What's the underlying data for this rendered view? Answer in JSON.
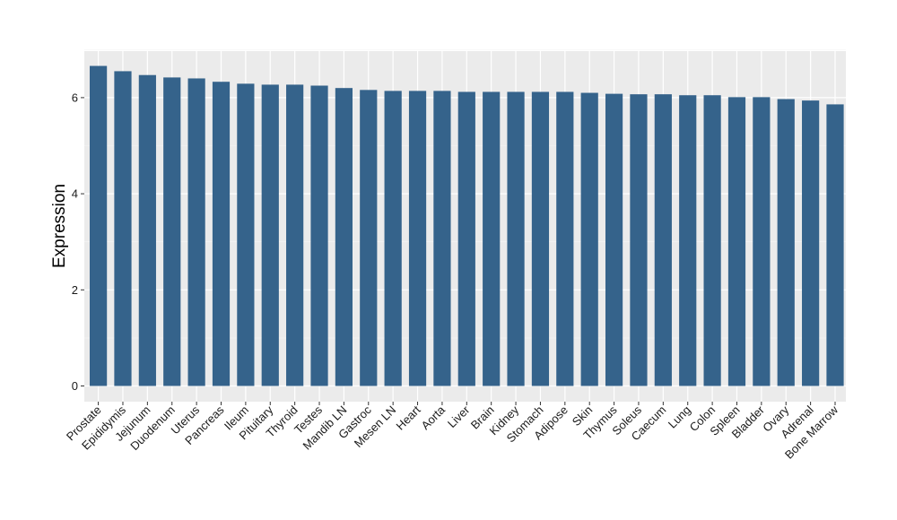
{
  "chart_data": {
    "type": "bar",
    "title": "",
    "xlabel": "",
    "ylabel": "Expression",
    "ylim": [
      0,
      7
    ],
    "yticks": [
      0,
      2,
      4,
      6
    ],
    "grid": true,
    "background": "#ebebeb",
    "bar_color": "#35638b",
    "categories": [
      "Prostate",
      "Epididymis",
      "Jejunum",
      "Duodenum",
      "Uterus",
      "Pancreas",
      "Ileum",
      "Pituitary",
      "Thyroid",
      "Testes",
      "Mandib LN",
      "Gastroc",
      "Mesen LN",
      "Heart",
      "Aorta",
      "Liver",
      "Brain",
      "Kidney",
      "Stomach",
      "Adipose",
      "Skin",
      "Thymus",
      "Soleus",
      "Caecum",
      "Lung",
      "Colon",
      "Spleen",
      "Bladder",
      "Ovary",
      "Adrenal",
      "Bone Marrow"
    ],
    "values": [
      6.66,
      6.55,
      6.47,
      6.42,
      6.4,
      6.33,
      6.29,
      6.27,
      6.27,
      6.25,
      6.2,
      6.16,
      6.14,
      6.14,
      6.14,
      6.12,
      6.12,
      6.12,
      6.12,
      6.12,
      6.1,
      6.08,
      6.07,
      6.07,
      6.05,
      6.05,
      6.01,
      6.01,
      5.97,
      5.94,
      5.86
    ]
  }
}
